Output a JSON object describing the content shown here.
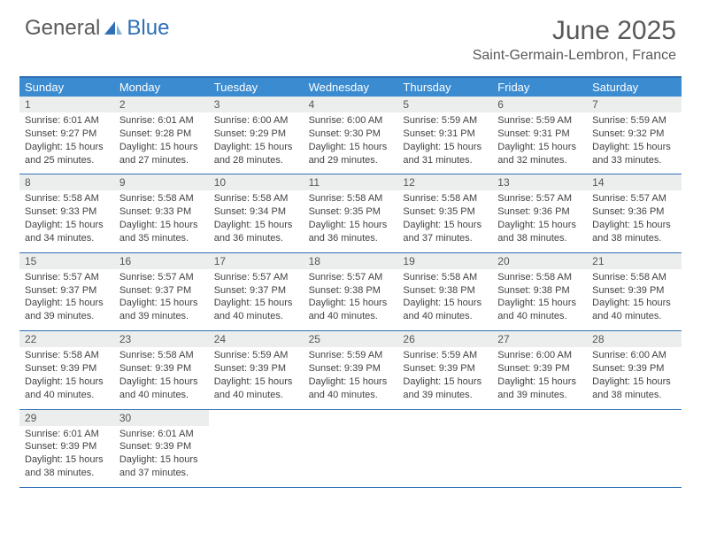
{
  "logo": {
    "word1": "General",
    "word2": "Blue"
  },
  "title": "June 2025",
  "location": "Saint-Germain-Lembron, France",
  "colors": {
    "header_bar": "#3a8bd0",
    "border": "#2e6fb5",
    "daynum_bg": "#eceded",
    "text": "#424242",
    "title_text": "#595959"
  },
  "weekdays": [
    "Sunday",
    "Monday",
    "Tuesday",
    "Wednesday",
    "Thursday",
    "Friday",
    "Saturday"
  ],
  "weeks": [
    [
      {
        "n": "1",
        "sunrise": "Sunrise: 6:01 AM",
        "sunset": "Sunset: 9:27 PM",
        "day": "Daylight: 15 hours and 25 minutes."
      },
      {
        "n": "2",
        "sunrise": "Sunrise: 6:01 AM",
        "sunset": "Sunset: 9:28 PM",
        "day": "Daylight: 15 hours and 27 minutes."
      },
      {
        "n": "3",
        "sunrise": "Sunrise: 6:00 AM",
        "sunset": "Sunset: 9:29 PM",
        "day": "Daylight: 15 hours and 28 minutes."
      },
      {
        "n": "4",
        "sunrise": "Sunrise: 6:00 AM",
        "sunset": "Sunset: 9:30 PM",
        "day": "Daylight: 15 hours and 29 minutes."
      },
      {
        "n": "5",
        "sunrise": "Sunrise: 5:59 AM",
        "sunset": "Sunset: 9:31 PM",
        "day": "Daylight: 15 hours and 31 minutes."
      },
      {
        "n": "6",
        "sunrise": "Sunrise: 5:59 AM",
        "sunset": "Sunset: 9:31 PM",
        "day": "Daylight: 15 hours and 32 minutes."
      },
      {
        "n": "7",
        "sunrise": "Sunrise: 5:59 AM",
        "sunset": "Sunset: 9:32 PM",
        "day": "Daylight: 15 hours and 33 minutes."
      }
    ],
    [
      {
        "n": "8",
        "sunrise": "Sunrise: 5:58 AM",
        "sunset": "Sunset: 9:33 PM",
        "day": "Daylight: 15 hours and 34 minutes."
      },
      {
        "n": "9",
        "sunrise": "Sunrise: 5:58 AM",
        "sunset": "Sunset: 9:33 PM",
        "day": "Daylight: 15 hours and 35 minutes."
      },
      {
        "n": "10",
        "sunrise": "Sunrise: 5:58 AM",
        "sunset": "Sunset: 9:34 PM",
        "day": "Daylight: 15 hours and 36 minutes."
      },
      {
        "n": "11",
        "sunrise": "Sunrise: 5:58 AM",
        "sunset": "Sunset: 9:35 PM",
        "day": "Daylight: 15 hours and 36 minutes."
      },
      {
        "n": "12",
        "sunrise": "Sunrise: 5:58 AM",
        "sunset": "Sunset: 9:35 PM",
        "day": "Daylight: 15 hours and 37 minutes."
      },
      {
        "n": "13",
        "sunrise": "Sunrise: 5:57 AM",
        "sunset": "Sunset: 9:36 PM",
        "day": "Daylight: 15 hours and 38 minutes."
      },
      {
        "n": "14",
        "sunrise": "Sunrise: 5:57 AM",
        "sunset": "Sunset: 9:36 PM",
        "day": "Daylight: 15 hours and 38 minutes."
      }
    ],
    [
      {
        "n": "15",
        "sunrise": "Sunrise: 5:57 AM",
        "sunset": "Sunset: 9:37 PM",
        "day": "Daylight: 15 hours and 39 minutes."
      },
      {
        "n": "16",
        "sunrise": "Sunrise: 5:57 AM",
        "sunset": "Sunset: 9:37 PM",
        "day": "Daylight: 15 hours and 39 minutes."
      },
      {
        "n": "17",
        "sunrise": "Sunrise: 5:57 AM",
        "sunset": "Sunset: 9:37 PM",
        "day": "Daylight: 15 hours and 40 minutes."
      },
      {
        "n": "18",
        "sunrise": "Sunrise: 5:57 AM",
        "sunset": "Sunset: 9:38 PM",
        "day": "Daylight: 15 hours and 40 minutes."
      },
      {
        "n": "19",
        "sunrise": "Sunrise: 5:58 AM",
        "sunset": "Sunset: 9:38 PM",
        "day": "Daylight: 15 hours and 40 minutes."
      },
      {
        "n": "20",
        "sunrise": "Sunrise: 5:58 AM",
        "sunset": "Sunset: 9:38 PM",
        "day": "Daylight: 15 hours and 40 minutes."
      },
      {
        "n": "21",
        "sunrise": "Sunrise: 5:58 AM",
        "sunset": "Sunset: 9:39 PM",
        "day": "Daylight: 15 hours and 40 minutes."
      }
    ],
    [
      {
        "n": "22",
        "sunrise": "Sunrise: 5:58 AM",
        "sunset": "Sunset: 9:39 PM",
        "day": "Daylight: 15 hours and 40 minutes."
      },
      {
        "n": "23",
        "sunrise": "Sunrise: 5:58 AM",
        "sunset": "Sunset: 9:39 PM",
        "day": "Daylight: 15 hours and 40 minutes."
      },
      {
        "n": "24",
        "sunrise": "Sunrise: 5:59 AM",
        "sunset": "Sunset: 9:39 PM",
        "day": "Daylight: 15 hours and 40 minutes."
      },
      {
        "n": "25",
        "sunrise": "Sunrise: 5:59 AM",
        "sunset": "Sunset: 9:39 PM",
        "day": "Daylight: 15 hours and 40 minutes."
      },
      {
        "n": "26",
        "sunrise": "Sunrise: 5:59 AM",
        "sunset": "Sunset: 9:39 PM",
        "day": "Daylight: 15 hours and 39 minutes."
      },
      {
        "n": "27",
        "sunrise": "Sunrise: 6:00 AM",
        "sunset": "Sunset: 9:39 PM",
        "day": "Daylight: 15 hours and 39 minutes."
      },
      {
        "n": "28",
        "sunrise": "Sunrise: 6:00 AM",
        "sunset": "Sunset: 9:39 PM",
        "day": "Daylight: 15 hours and 38 minutes."
      }
    ],
    [
      {
        "n": "29",
        "sunrise": "Sunrise: 6:01 AM",
        "sunset": "Sunset: 9:39 PM",
        "day": "Daylight: 15 hours and 38 minutes."
      },
      {
        "n": "30",
        "sunrise": "Sunrise: 6:01 AM",
        "sunset": "Sunset: 9:39 PM",
        "day": "Daylight: 15 hours and 37 minutes."
      },
      null,
      null,
      null,
      null,
      null
    ]
  ]
}
